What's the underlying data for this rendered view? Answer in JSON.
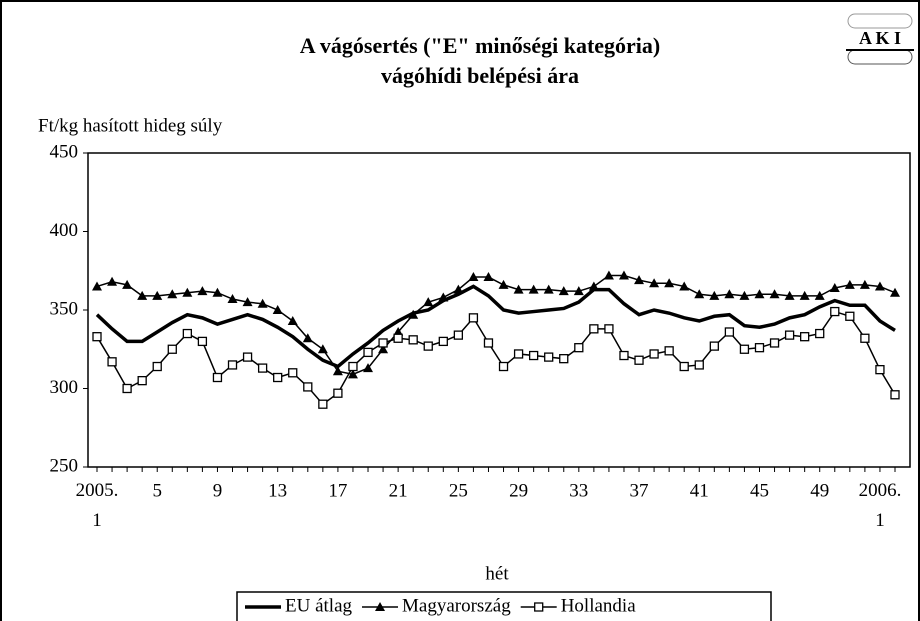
{
  "logo": "A K I",
  "chart_data": {
    "type": "line",
    "title": "A vágósertés (\"E\" minőségi kategória)",
    "subtitle": "vágóhídi belépési ára",
    "y_label": "Ft/kg hasított hideg súly",
    "x_label": "hét",
    "categories": [
      "2005. 1",
      null,
      null,
      null,
      "5",
      null,
      null,
      null,
      "9",
      null,
      null,
      null,
      "13",
      null,
      null,
      null,
      "17",
      null,
      null,
      null,
      "21",
      null,
      null,
      null,
      "25",
      null,
      null,
      null,
      "29",
      null,
      null,
      null,
      "33",
      null,
      null,
      null,
      "37",
      null,
      null,
      null,
      "41",
      null,
      null,
      null,
      "45",
      null,
      null,
      null,
      "49",
      null,
      null,
      null,
      "2006. 1",
      null
    ],
    "ylim": [
      250,
      450
    ],
    "yticks": [
      250,
      300,
      350,
      400,
      450
    ],
    "legend": "bottom",
    "series": [
      {
        "name": "EU átlag",
        "color": "#000000",
        "marker": "none",
        "values": [
          347,
          338,
          330,
          330,
          336,
          342,
          347,
          345,
          341,
          344,
          347,
          344,
          339,
          333,
          325,
          318,
          314,
          322,
          329,
          337,
          343,
          348,
          350,
          356,
          360,
          365,
          359,
          350,
          348,
          349,
          350,
          351,
          355,
          363,
          363,
          354,
          347,
          350,
          348,
          345,
          343,
          346,
          347,
          340,
          339,
          341,
          345,
          347,
          352,
          356,
          353,
          353,
          343,
          337
        ]
      },
      {
        "name": "Magyarország",
        "color": "#000000",
        "marker": "triangle",
        "values": [
          365,
          368,
          366,
          359,
          359,
          360,
          361,
          362,
          361,
          357,
          355,
          354,
          350,
          343,
          332,
          325,
          311,
          309,
          313,
          325,
          336,
          347,
          355,
          358,
          363,
          371,
          371,
          366,
          363,
          363,
          363,
          362,
          362,
          365,
          372,
          372,
          369,
          367,
          367,
          365,
          360,
          359,
          360,
          359,
          360,
          360,
          359,
          359,
          359,
          364,
          366,
          366,
          365,
          361
        ]
      },
      {
        "name": "Hollandia",
        "color": "#000000",
        "marker": "square",
        "values": [
          333,
          317,
          300,
          305,
          314,
          325,
          335,
          330,
          307,
          315,
          320,
          313,
          307,
          310,
          301,
          290,
          297,
          314,
          323,
          329,
          332,
          331,
          327,
          330,
          334,
          345,
          329,
          314,
          322,
          321,
          320,
          319,
          326,
          338,
          338,
          321,
          318,
          322,
          324,
          314,
          315,
          327,
          336,
          325,
          326,
          329,
          334,
          333,
          335,
          349,
          346,
          332,
          312,
          296
        ]
      }
    ]
  }
}
